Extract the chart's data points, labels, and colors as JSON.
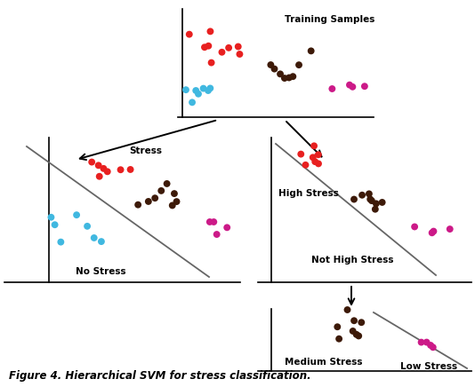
{
  "title": "Figure 4. Hierarchical SVM for stress classification.",
  "bg_color": "#ffffff",
  "colors": {
    "red": "#e82020",
    "dark": "#3d1a08",
    "cyan": "#40b8e0",
    "magenta": "#cc1a88"
  },
  "dot_size": 32,
  "labels": {
    "training_samples": "Training Samples",
    "stress": "Stress",
    "no_stress": "No Stress",
    "high_stress": "High Stress",
    "not_high_stress": "Not High Stress",
    "medium_stress": "Medium Stress",
    "low_stress": "Low Stress"
  }
}
